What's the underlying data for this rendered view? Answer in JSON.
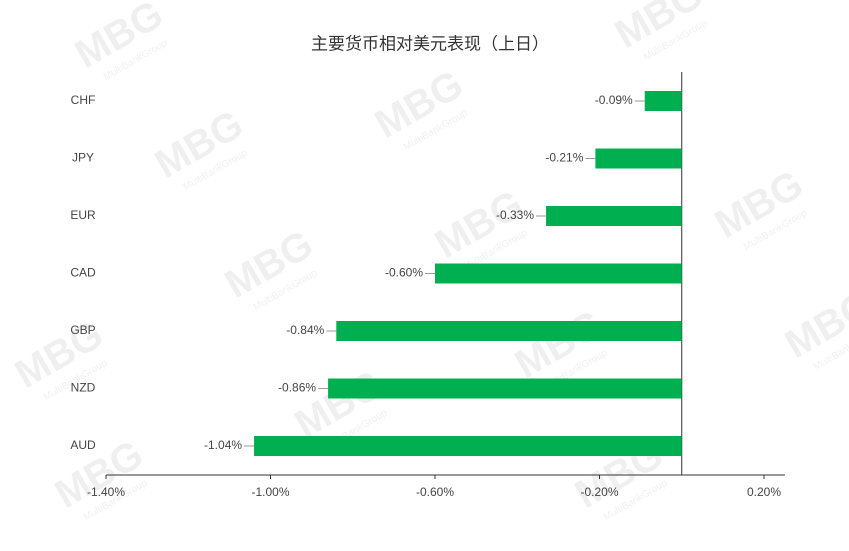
{
  "chart_data": {
    "type": "hbar",
    "title": "主要货币相对美元表现（上日）",
    "categories": [
      "CHF",
      "JPY",
      "EUR",
      "CAD",
      "GBP",
      "NZD",
      "AUD"
    ],
    "values": [
      -0.09,
      -0.21,
      -0.33,
      -0.6,
      -0.84,
      -0.86,
      -1.04
    ],
    "value_labels": [
      "-0.09%",
      "-0.21%",
      "-0.33%",
      "-0.60%",
      "-0.84%",
      "-0.86%",
      "-1.04%"
    ],
    "color": "#00b050",
    "xlim": [
      -1.4,
      0.2
    ],
    "xticks": [
      {
        "value": -1.4,
        "label": "-1.40%"
      },
      {
        "value": -1.0,
        "label": "-1.00%"
      },
      {
        "value": -0.6,
        "label": "-0.60%"
      },
      {
        "value": -0.2,
        "label": "-0.20%"
      },
      {
        "value": 0.2,
        "label": "0.20%"
      }
    ],
    "watermark": {
      "logo": "MBG",
      "text": "MultiBankGroup"
    }
  }
}
